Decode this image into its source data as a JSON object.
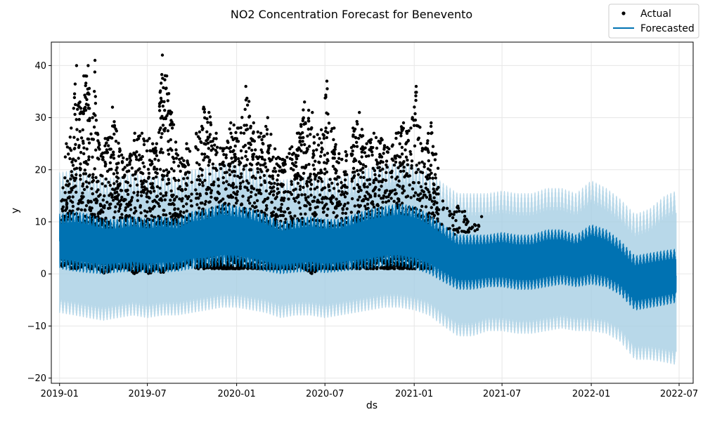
{
  "chart_data": {
    "type": "line",
    "title": "NO2 Concentration Forecast for Benevento",
    "xlabel": "ds",
    "ylabel": "y",
    "x_range": [
      "2018-12-15",
      "2022-07-30"
    ],
    "ylim": [
      -21,
      44.5
    ],
    "x_ticks": [
      "2019-01",
      "2019-07",
      "2020-01",
      "2020-07",
      "2021-01",
      "2021-07",
      "2022-01",
      "2022-07"
    ],
    "y_ticks": [
      -20,
      -10,
      0,
      10,
      20,
      30,
      40
    ],
    "grid": true,
    "legend_position": "top-right",
    "legend": [
      "Actual",
      "Forecasted"
    ],
    "colors": {
      "actual": "#000000",
      "forecast": "#0072B2",
      "uncertainty": "#a6cee3"
    },
    "data_gaps": [
      [
        "2019-10-01",
        "2019-10-08"
      ],
      [
        "2020-08-18",
        "2020-08-24"
      ]
    ],
    "series": [
      {
        "name": "Forecasted",
        "kind": "forecast",
        "x": [
          "2019-01-01",
          "2019-02-01",
          "2019-03-01",
          "2019-04-01",
          "2019-05-01",
          "2019-06-01",
          "2019-07-01",
          "2019-08-01",
          "2019-09-01",
          "2019-10-01",
          "2019-11-01",
          "2019-12-01",
          "2020-01-01",
          "2020-02-01",
          "2020-03-01",
          "2020-04-01",
          "2020-05-01",
          "2020-06-01",
          "2020-07-01",
          "2020-08-01",
          "2020-09-01",
          "2020-10-01",
          "2020-11-01",
          "2020-12-01",
          "2021-01-01",
          "2021-02-01",
          "2021-03-01",
          "2021-04-01",
          "2021-05-01",
          "2021-06-01",
          "2021-07-01",
          "2021-08-01",
          "2021-09-01",
          "2021-10-01",
          "2021-11-01",
          "2021-12-01",
          "2022-01-01",
          "2022-02-01",
          "2022-03-01",
          "2022-04-01",
          "2022-05-01",
          "2022-06-01",
          "2022-06-25"
        ],
        "yhat_upper": [
          11.5,
          12.0,
          11.5,
          10.5,
          10.5,
          11.0,
          10.5,
          11.0,
          10.5,
          12.0,
          12.5,
          13.5,
          13.0,
          12.5,
          11.5,
          10.0,
          10.5,
          11.0,
          10.5,
          10.5,
          11.5,
          12.5,
          13.0,
          13.5,
          13.0,
          11.5,
          9.5,
          7.5,
          7.5,
          7.5,
          8.0,
          7.5,
          7.5,
          8.5,
          8.5,
          7.5,
          9.5,
          8.5,
          6.5,
          3.5,
          4.0,
          4.5,
          4.8
        ],
        "yhat_lower": [
          1.0,
          0.5,
          0.2,
          0.0,
          0.3,
          0.5,
          0.2,
          0.3,
          0.5,
          1.0,
          1.2,
          1.5,
          1.5,
          1.0,
          0.5,
          0.0,
          0.3,
          0.5,
          0.2,
          0.5,
          0.8,
          1.0,
          1.5,
          1.5,
          1.0,
          0.0,
          -1.5,
          -3.0,
          -3.0,
          -2.5,
          -2.5,
          -3.0,
          -3.0,
          -2.5,
          -2.0,
          -2.5,
          -2.0,
          -2.5,
          -4.0,
          -7.0,
          -6.5,
          -6.0,
          -5.5
        ],
        "upper_band": [
          19.5,
          20.0,
          19.5,
          18.5,
          18.5,
          19.5,
          18.5,
          19.0,
          18.5,
          20.0,
          20.5,
          21.5,
          21.0,
          20.5,
          19.5,
          18.0,
          18.5,
          19.0,
          18.5,
          18.5,
          19.5,
          20.5,
          21.0,
          21.5,
          21.0,
          19.5,
          17.5,
          15.5,
          15.5,
          15.5,
          16.0,
          15.5,
          15.5,
          16.5,
          16.5,
          15.5,
          18.0,
          16.5,
          14.5,
          11.5,
          12.5,
          15.0,
          16.0
        ],
        "lower_band": [
          -7.5,
          -8.0,
          -8.5,
          -9.0,
          -8.5,
          -8.0,
          -8.5,
          -8.0,
          -8.0,
          -7.5,
          -7.0,
          -6.5,
          -6.5,
          -7.0,
          -7.5,
          -8.5,
          -8.0,
          -8.0,
          -8.5,
          -8.0,
          -7.5,
          -7.0,
          -6.5,
          -6.5,
          -7.0,
          -8.0,
          -10.0,
          -12.0,
          -12.0,
          -11.0,
          -11.0,
          -11.5,
          -11.5,
          -11.0,
          -10.5,
          -11.0,
          -11.0,
          -11.5,
          -13.0,
          -16.5,
          -16.5,
          -17.0,
          -17.5
        ]
      },
      {
        "name": "Actual",
        "kind": "observed",
        "x": [
          "2019-01-05",
          "2019-01-15",
          "2019-01-25",
          "2019-02-05",
          "2019-02-12",
          "2019-02-20",
          "2019-03-01",
          "2019-03-10",
          "2019-03-15",
          "2019-03-20",
          "2019-04-05",
          "2019-04-20",
          "2019-05-05",
          "2019-05-20",
          "2019-06-05",
          "2019-06-20",
          "2019-07-05",
          "2019-07-20",
          "2019-08-01",
          "2019-08-10",
          "2019-08-20",
          "2019-09-05",
          "2019-09-20",
          "2019-10-10",
          "2019-10-25",
          "2019-11-05",
          "2019-11-20",
          "2019-12-05",
          "2019-12-20",
          "2020-01-05",
          "2020-01-20",
          "2020-02-05",
          "2020-02-20",
          "2020-03-05",
          "2020-03-20",
          "2020-04-05",
          "2020-04-20",
          "2020-05-05",
          "2020-05-20",
          "2020-06-05",
          "2020-06-20",
          "2020-07-05",
          "2020-07-20",
          "2020-08-05",
          "2020-08-28",
          "2020-09-10",
          "2020-09-25",
          "2020-10-10",
          "2020-10-25",
          "2020-11-10",
          "2020-11-25",
          "2020-12-10",
          "2020-12-25",
          "2021-01-05",
          "2021-01-20",
          "2021-02-05",
          "2021-02-15",
          "2021-03-01",
          "2021-03-15",
          "2021-04-01",
          "2021-04-15",
          "2021-05-01",
          "2021-05-20"
        ],
        "max": [
          14,
          25,
          28,
          40,
          33,
          38,
          40,
          30,
          41,
          27,
          26,
          32,
          24,
          22,
          27,
          27,
          26,
          25,
          42,
          38,
          31,
          22,
          25,
          27,
          32,
          31,
          27,
          24,
          29,
          28,
          36,
          29,
          27,
          30,
          24,
          22,
          24,
          27,
          33,
          31,
          26,
          37,
          28,
          22,
          28,
          31,
          25,
          27,
          26,
          24,
          27,
          29,
          28,
          36,
          24,
          29,
          23,
          14,
          12,
          13,
          12,
          9,
          11
        ],
        "min": [
          1,
          2,
          1,
          1,
          1,
          2,
          1,
          1,
          2,
          1,
          0,
          1,
          1,
          1,
          0,
          1,
          0,
          1,
          0,
          1,
          1,
          1,
          2,
          1,
          1,
          1,
          1,
          1,
          1,
          1,
          1,
          1,
          1,
          1,
          1,
          1,
          1,
          1,
          1,
          0,
          1,
          1,
          1,
          1,
          1,
          1,
          1,
          1,
          1,
          1,
          1,
          1,
          1,
          1,
          1,
          1,
          2,
          7,
          7,
          8,
          8,
          8,
          9
        ]
      }
    ]
  }
}
